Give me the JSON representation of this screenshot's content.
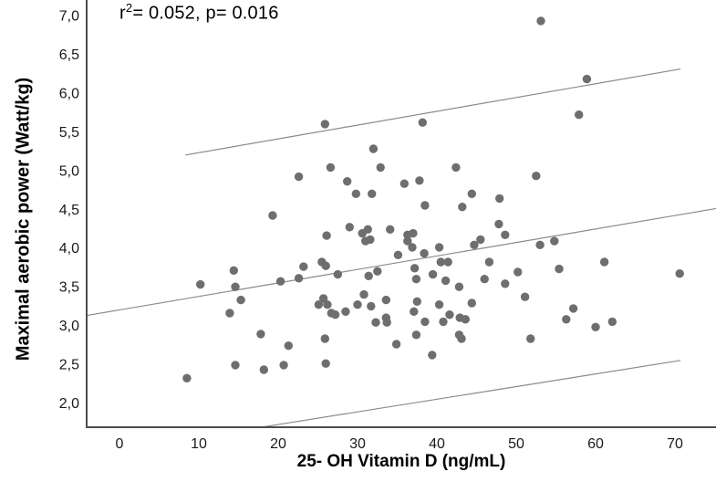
{
  "chart_data": {
    "type": "scatter",
    "annotation": {
      "prefix": "r",
      "sup": "2",
      "rest": "= 0.052, p= 0.016"
    },
    "stats": {
      "r_squared": 0.052,
      "p_value": 0.016
    },
    "xlabel": "25- OH Vitamin D (ng/mL)",
    "ylabel": "Maximal aerobic power (Watt/kg)",
    "xlim": [
      -4.1,
      75.2
    ],
    "ylim": [
      1.66,
      7.2
    ],
    "grid": false,
    "legend": "none",
    "x_ticks": [
      {
        "v": 0,
        "label": "0"
      },
      {
        "v": 10,
        "label": "10"
      },
      {
        "v": 20,
        "label": "20"
      },
      {
        "v": 30,
        "label": "30"
      },
      {
        "v": 40,
        "label": "40"
      },
      {
        "v": 50,
        "label": "50"
      },
      {
        "v": 60,
        "label": "60"
      },
      {
        "v": 70,
        "label": "70"
      }
    ],
    "y_ticks": [
      {
        "v": 7.0,
        "label": "7,0"
      },
      {
        "v": 6.5,
        "label": "6,5"
      },
      {
        "v": 6.0,
        "label": "6,0"
      },
      {
        "v": 5.5,
        "label": "5,5"
      },
      {
        "v": 5.0,
        "label": "5,0"
      },
      {
        "v": 4.5,
        "label": "4,5"
      },
      {
        "v": 4.0,
        "label": "4,0"
      },
      {
        "v": 3.5,
        "label": "3,5"
      },
      {
        "v": 3.0,
        "label": "3,0"
      },
      {
        "v": 2.5,
        "label": "2,5"
      },
      {
        "v": 2.0,
        "label": "2,0"
      }
    ],
    "fit_line": {
      "x1": -4.1,
      "y1": 3.13,
      "x2": 75.2,
      "y2": 4.51
    },
    "confidence_bands": {
      "upper": {
        "x1": 8.3,
        "y1": 5.2,
        "x2": 70.7,
        "y2": 6.31
      },
      "lower": {
        "x1": 18.0,
        "y1": 1.69,
        "x2": 70.7,
        "y2": 2.55
      }
    },
    "points": [
      [
        22.6,
        4.92
      ],
      [
        19.3,
        4.42
      ],
      [
        25.9,
        5.6
      ],
      [
        38.2,
        5.62
      ],
      [
        32.0,
        5.28
      ],
      [
        26.6,
        5.04
      ],
      [
        32.9,
        5.04
      ],
      [
        42.4,
        5.04
      ],
      [
        28.7,
        4.86
      ],
      [
        35.9,
        4.83
      ],
      [
        37.8,
        4.87
      ],
      [
        29.8,
        4.7
      ],
      [
        31.8,
        4.7
      ],
      [
        44.4,
        4.7
      ],
      [
        47.9,
        4.64
      ],
      [
        38.5,
        4.55
      ],
      [
        43.2,
        4.53
      ],
      [
        53.1,
        6.93
      ],
      [
        58.9,
        6.18
      ],
      [
        57.9,
        5.72
      ],
      [
        52.5,
        4.93
      ],
      [
        14.4,
        3.71
      ],
      [
        10.2,
        3.53
      ],
      [
        14.6,
        3.5
      ],
      [
        20.3,
        3.57
      ],
      [
        22.6,
        3.61
      ],
      [
        15.3,
        3.33
      ],
      [
        13.9,
        3.16
      ],
      [
        17.8,
        2.89
      ],
      [
        21.3,
        2.74
      ],
      [
        14.6,
        2.49
      ],
      [
        18.2,
        2.43
      ],
      [
        20.7,
        2.49
      ],
      [
        8.5,
        2.32
      ],
      [
        29.0,
        4.27
      ],
      [
        26.1,
        4.16
      ],
      [
        30.6,
        4.19
      ],
      [
        31.3,
        4.24
      ],
      [
        34.1,
        4.24
      ],
      [
        31.0,
        4.09
      ],
      [
        31.6,
        4.11
      ],
      [
        36.3,
        4.17
      ],
      [
        37.0,
        4.19
      ],
      [
        36.3,
        4.09
      ],
      [
        36.9,
        4.01
      ],
      [
        40.3,
        4.01
      ],
      [
        35.1,
        3.91
      ],
      [
        38.4,
        3.93
      ],
      [
        45.5,
        4.11
      ],
      [
        44.7,
        4.04
      ],
      [
        47.8,
        4.31
      ],
      [
        48.6,
        4.17
      ],
      [
        23.2,
        3.76
      ],
      [
        25.5,
        3.82
      ],
      [
        26.0,
        3.77
      ],
      [
        27.5,
        3.66
      ],
      [
        31.4,
        3.64
      ],
      [
        32.5,
        3.7
      ],
      [
        37.2,
        3.74
      ],
      [
        40.5,
        3.82
      ],
      [
        41.4,
        3.82
      ],
      [
        37.4,
        3.6
      ],
      [
        39.5,
        3.66
      ],
      [
        41.1,
        3.58
      ],
      [
        46.6,
        3.82
      ],
      [
        46.0,
        3.6
      ],
      [
        48.6,
        3.54
      ],
      [
        42.8,
        3.5
      ],
      [
        25.7,
        3.35
      ],
      [
        25.1,
        3.27
      ],
      [
        26.2,
        3.27
      ],
      [
        26.7,
        3.16
      ],
      [
        27.2,
        3.14
      ],
      [
        28.5,
        3.18
      ],
      [
        30.0,
        3.27
      ],
      [
        30.8,
        3.4
      ],
      [
        31.7,
        3.25
      ],
      [
        33.6,
        3.33
      ],
      [
        32.3,
        3.04
      ],
      [
        33.6,
        3.1
      ],
      [
        33.7,
        3.04
      ],
      [
        37.5,
        3.31
      ],
      [
        37.1,
        3.18
      ],
      [
        38.5,
        3.05
      ],
      [
        37.4,
        2.88
      ],
      [
        40.3,
        3.27
      ],
      [
        40.8,
        3.05
      ],
      [
        41.6,
        3.14
      ],
      [
        42.9,
        3.1
      ],
      [
        43.6,
        3.08
      ],
      [
        42.8,
        2.88
      ],
      [
        43.1,
        2.83
      ],
      [
        34.9,
        2.76
      ],
      [
        39.4,
        2.62
      ],
      [
        25.9,
        2.83
      ],
      [
        26.0,
        2.51
      ],
      [
        44.4,
        3.29
      ],
      [
        53.0,
        4.04
      ],
      [
        54.8,
        4.09
      ],
      [
        50.2,
        3.69
      ],
      [
        55.4,
        3.73
      ],
      [
        61.1,
        3.82
      ],
      [
        70.6,
        3.67
      ],
      [
        51.1,
        3.37
      ],
      [
        57.2,
        3.22
      ],
      [
        56.3,
        3.08
      ],
      [
        60.0,
        2.98
      ],
      [
        62.1,
        3.05
      ],
      [
        51.8,
        2.83
      ]
    ],
    "colors": {
      "point": "#6e6e6e",
      "line": "#8a8a8a",
      "axis": "#4d4d4d",
      "text": "#1a1a1a",
      "background": "#ffffff"
    }
  }
}
